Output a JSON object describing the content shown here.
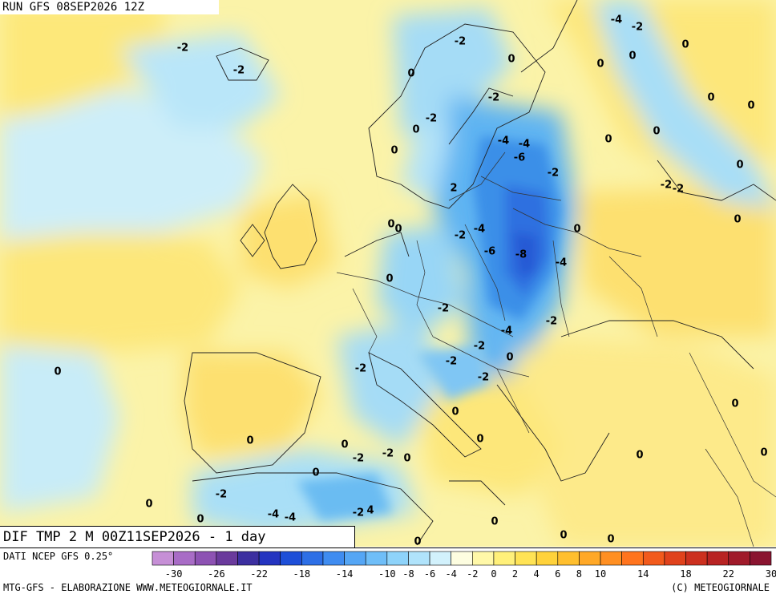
{
  "run_label": "RUN GFS 08SEP2026 12Z",
  "title": "DIF TMP 2 M 00Z11SEP2026 - 1 day",
  "data_source": "DATI NCEP GFS 0.25°",
  "footer_left": "MTG-GFS - ELABORAZIONE WWW.METEOGIORNALE.IT",
  "footer_right": "(C) METEOGIORNALE",
  "legend": {
    "ticks": [
      "-30",
      "-26",
      "-22",
      "-18",
      "-14",
      "-10",
      "-8",
      "-6",
      "-4",
      "-2",
      "0",
      "2",
      "4",
      "6",
      "8",
      "10",
      "14",
      "18",
      "22",
      "30"
    ],
    "colors": [
      "#c68fd6",
      "#a86cc6",
      "#8d52b3",
      "#6a3a9c",
      "#3c2fa0",
      "#2434c0",
      "#1e4fd8",
      "#2d6fe6",
      "#3f8cf0",
      "#55a6f5",
      "#6fbef8",
      "#8ed3fa",
      "#b0e3fb",
      "#d2f1fc",
      "#fdfde0",
      "#fff8a8",
      "#fff07a",
      "#ffe355",
      "#ffd23b",
      "#ffbf2e",
      "#ffa827",
      "#ff8f22",
      "#ff741e",
      "#f25a1c",
      "#e0421c",
      "#cc301f",
      "#b82323",
      "#a01a2a",
      "#8a1430"
    ]
  },
  "isolines": [
    {
      "text": "-2"
    },
    {
      "text": "-2"
    },
    {
      "text": "-2"
    },
    {
      "text": "0"
    },
    {
      "text": "0"
    },
    {
      "text": "0"
    },
    {
      "text": "-2"
    },
    {
      "text": "0"
    },
    {
      "text": "-2"
    },
    {
      "text": "0"
    },
    {
      "text": "0"
    },
    {
      "text": "0"
    },
    {
      "text": "-4"
    },
    {
      "text": "-2"
    },
    {
      "text": "0"
    },
    {
      "text": "0"
    },
    {
      "text": "0"
    },
    {
      "text": "-2"
    },
    {
      "text": "0"
    },
    {
      "text": "-4"
    },
    {
      "text": "-4"
    },
    {
      "text": "-6"
    },
    {
      "text": "-2"
    },
    {
      "text": "0"
    },
    {
      "text": "-2"
    },
    {
      "text": "2"
    },
    {
      "text": "0"
    },
    {
      "text": "0"
    },
    {
      "text": "0"
    },
    {
      "text": "-2"
    },
    {
      "text": "-4"
    },
    {
      "text": "-6"
    },
    {
      "text": "-8"
    },
    {
      "text": "-4"
    },
    {
      "text": "0"
    },
    {
      "text": "-2"
    },
    {
      "text": "-2"
    },
    {
      "text": "-4"
    },
    {
      "text": "0"
    },
    {
      "text": "0"
    },
    {
      "text": "-2"
    },
    {
      "text": "-2"
    },
    {
      "text": "-2"
    },
    {
      "text": "-2"
    },
    {
      "text": "0"
    },
    {
      "text": "0"
    },
    {
      "text": "0"
    },
    {
      "text": "0"
    },
    {
      "text": "0"
    },
    {
      "text": "-2"
    },
    {
      "text": "-2"
    },
    {
      "text": "0"
    },
    {
      "text": "0"
    },
    {
      "text": "-2"
    },
    {
      "text": "0"
    },
    {
      "text": "0"
    },
    {
      "text": "-4"
    },
    {
      "text": "-4"
    },
    {
      "text": "-2"
    },
    {
      "text": "4"
    },
    {
      "text": "0"
    },
    {
      "text": "0"
    },
    {
      "text": "0"
    },
    {
      "text": "0"
    },
    {
      "text": "0"
    },
    {
      "text": "0"
    },
    {
      "text": "0"
    }
  ]
}
